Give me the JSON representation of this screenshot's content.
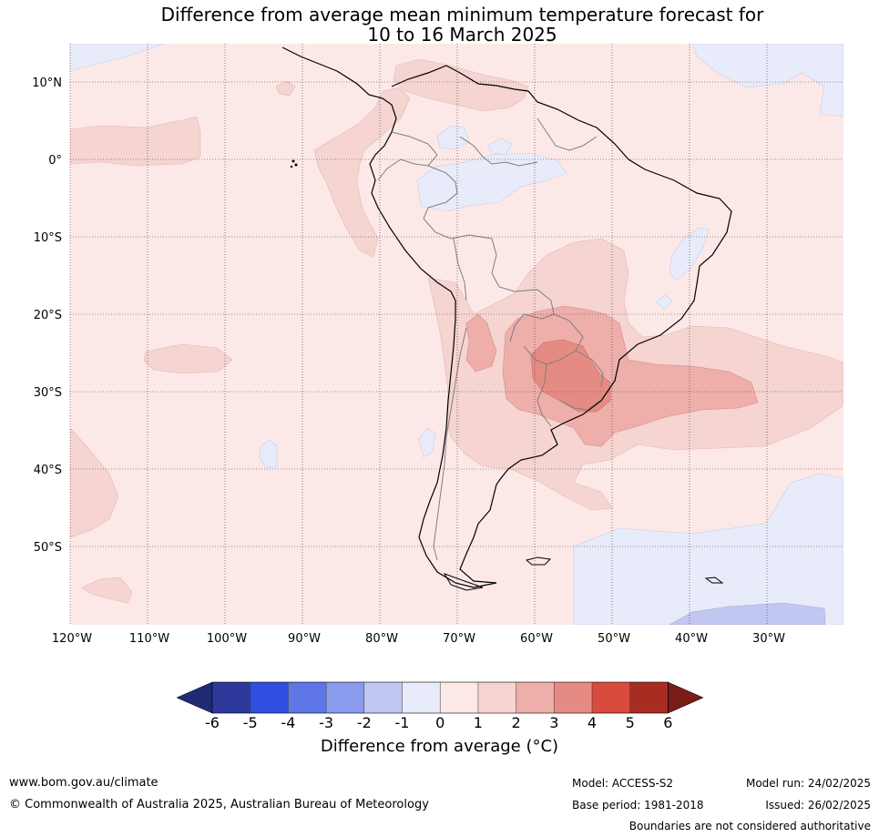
{
  "title": {
    "line1": "Difference from average mean minimum temperature forecast for",
    "line2": "10 to 16 March 2025"
  },
  "map": {
    "region": "South America",
    "lat_labels": [
      "10°N",
      "0°",
      "10°S",
      "20°S",
      "30°S",
      "40°S",
      "50°S"
    ],
    "lon_labels": [
      "120°W",
      "110°W",
      "100°W",
      "90°W",
      "80°W",
      "70°W",
      "60°W",
      "50°W",
      "40°W",
      "30°W"
    ],
    "extent": {
      "lon": [
        -120,
        -20
      ],
      "lat": [
        -60,
        15
      ]
    },
    "colors": {
      "ocean": "#fce9e7",
      "band_1_2": "#f5d4d1",
      "band_2_3": "#eeaeaa",
      "band_3_4": "#e68b83",
      "band_m1_0": "#e8ebf9",
      "band_m2_m1": "#c1c7f1",
      "coast": "#000000",
      "borders": "#7f7f7f"
    }
  },
  "colorbar": {
    "ticks": [
      "-6",
      "-5",
      "-4",
      "-3",
      "-2",
      "-1",
      "0",
      "1",
      "2",
      "3",
      "4",
      "5",
      "6"
    ],
    "colors": [
      "#2d3a9c",
      "#2f4fe0",
      "#5f77e6",
      "#8b9cee",
      "#c1c7f1",
      "#e8ebf9",
      "#fce9e7",
      "#f5d4d1",
      "#eeaeaa",
      "#e68b83",
      "#d94b3d",
      "#a82c22"
    ],
    "under_color": "#1f2b73",
    "over_color": "#7a1c17",
    "label": "Difference from average (°C)"
  },
  "footer": {
    "website": "www.bom.gov.au/climate",
    "copyright": "© Commonwealth of Australia 2025, Australian Bureau of Meteorology",
    "model": "Model: ACCESS-S2",
    "base_period": "Base period: 1981-2018",
    "model_run": "Model run: 24/02/2025",
    "issued": "Issued: 26/02/2025",
    "disclaimer": "Boundaries are not considered authoritative"
  }
}
